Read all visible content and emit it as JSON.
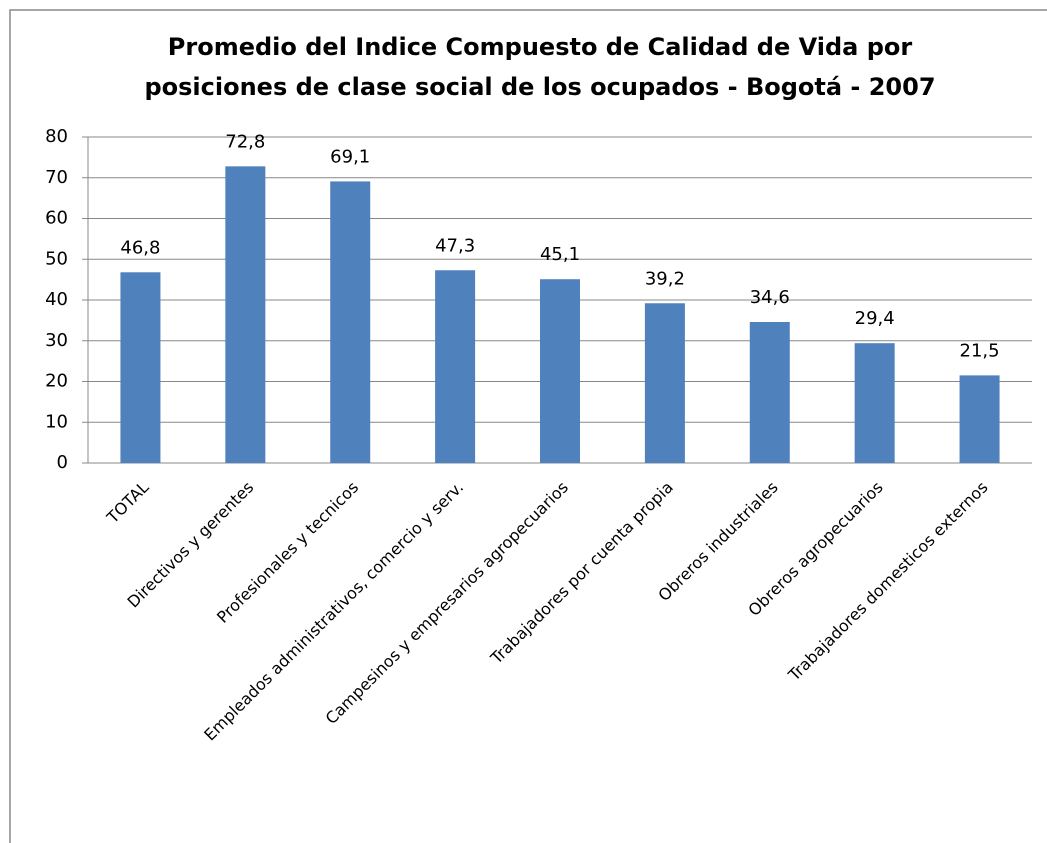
{
  "chart_data": {
    "type": "bar",
    "title": [
      "Promedio del Indice Compuesto de Calidad de Vida por",
      "posiciones de clase social de los ocupados - Bogotá - 2007"
    ],
    "categories": [
      "TOTAL",
      "Directivos y gerentes",
      "Profesionales y tecnicos",
      "Empleados administrativos, comercio y serv.",
      "Campesinos y empresarios agropecuarios",
      "Trabajadores por cuenta propia",
      "Obreros industriales",
      "Obreros agropecuarios",
      "Trabajadores domesticos externos"
    ],
    "values": [
      46.8,
      72.8,
      69.1,
      47.3,
      45.1,
      39.2,
      34.6,
      29.4,
      21.5
    ],
    "value_labels": [
      "46,8",
      "72,8",
      "69,1",
      "47,3",
      "45,1",
      "39,2",
      "34,6",
      "29,4",
      "21,5"
    ],
    "color": "#4f81bd",
    "ylim": [
      0,
      80
    ],
    "yticks": [
      0,
      10,
      20,
      30,
      40,
      50,
      60,
      70,
      80
    ],
    "grid": true
  }
}
